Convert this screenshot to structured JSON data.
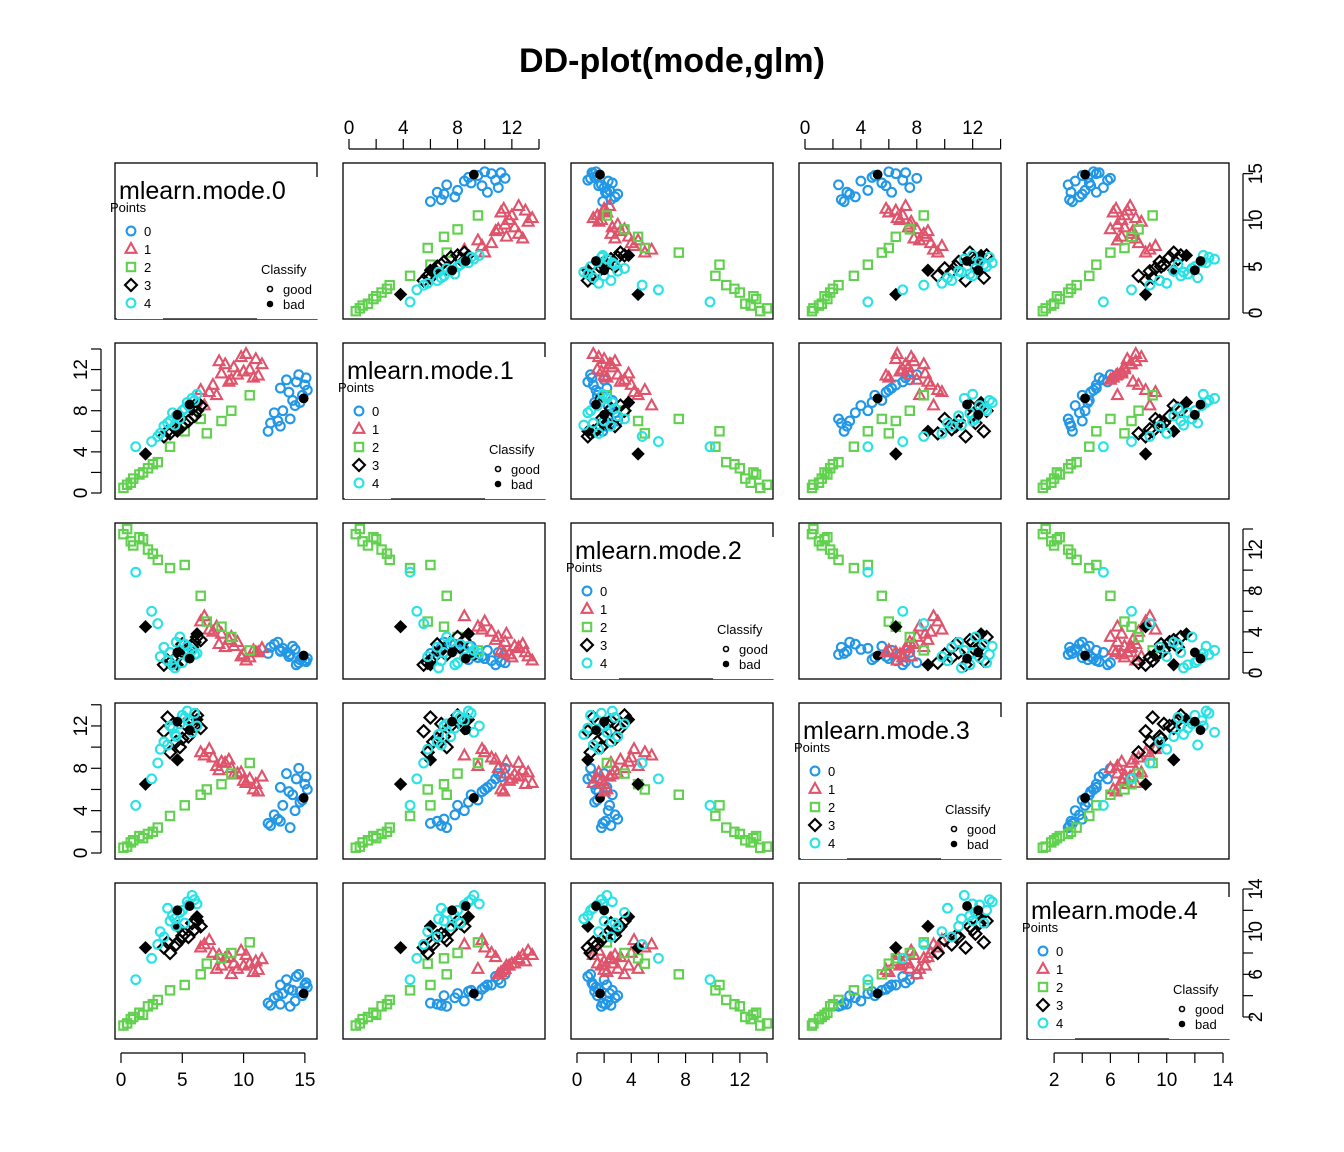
{
  "title": "DD-plot(mode,glm)",
  "colors": {
    "0": "#2297E6",
    "1": "#DF536B",
    "2": "#61D04F",
    "3": "#000000",
    "4": "#28E2E5"
  },
  "legend": {
    "points_title": "Points",
    "points_labels": [
      "0",
      "1",
      "2",
      "3",
      "4"
    ],
    "classify_title": "Classify",
    "classify_labels": [
      "good",
      "bad"
    ]
  },
  "variables": [
    "mlearn.mode.0",
    "mlearn.mode.1",
    "mlearn.mode.2",
    "mlearn.mode.3",
    "mlearn.mode.4"
  ],
  "chart_data": {
    "type": "scatter",
    "title": "DD-plot(mode,glm)",
    "layout": "pairs matrix 5x5",
    "variables": [
      "mlearn.mode.0",
      "mlearn.mode.1",
      "mlearn.mode.2",
      "mlearn.mode.3",
      "mlearn.mode.4"
    ],
    "ranges": [
      [
        0,
        15.5
      ],
      [
        0,
        14
      ],
      [
        0,
        14
      ],
      [
        0,
        13.6
      ],
      [
        0.5,
        14
      ]
    ],
    "ticks": [
      [
        "0",
        "5",
        "10",
        "15"
      ],
      [
        "0",
        "4",
        "8",
        "12"
      ],
      [
        "0",
        "4",
        "8",
        "12"
      ],
      [
        "0",
        "4",
        "8",
        "12"
      ],
      [
        "2",
        "6",
        "10",
        "14"
      ]
    ],
    "tick_values": [
      [
        0,
        5,
        10,
        15
      ],
      [
        0,
        4,
        8,
        12
      ],
      [
        0,
        4,
        8,
        12
      ],
      [
        0,
        4,
        8,
        12
      ],
      [
        2,
        6,
        10,
        14
      ]
    ],
    "minor_ticks": [
      [],
      [
        0,
        2,
        4,
        6,
        8,
        10,
        12,
        14
      ],
      [
        0,
        2,
        4,
        6,
        8,
        10,
        12,
        14
      ],
      [
        0,
        2,
        4,
        6,
        8,
        10,
        12,
        14
      ],
      [
        2,
        4,
        6,
        8,
        10,
        12,
        14
      ]
    ],
    "axis_layout": {
      "bottom": [
        0,
        2,
        4
      ],
      "top": [
        1,
        3
      ],
      "left": [
        1,
        3
      ],
      "right": [
        0,
        2,
        4
      ]
    },
    "groups": [
      {
        "name": "0",
        "shape": "circle",
        "color": "#2297E6"
      },
      {
        "name": "1",
        "shape": "triangle",
        "color": "#DF536B"
      },
      {
        "name": "2",
        "shape": "square",
        "color": "#61D04F"
      },
      {
        "name": "3",
        "shape": "diamond",
        "color": "#000000"
      },
      {
        "name": "4",
        "shape": "circle",
        "color": "#28E2E5"
      }
    ],
    "points": [
      [
        13.0,
        6.5,
        2.1,
        3.0,
        3.2,
        0,
        0
      ],
      [
        13.8,
        7.2,
        1.8,
        2.4,
        3.0,
        0,
        0
      ],
      [
        14.2,
        8.5,
        2.3,
        4.0,
        3.5,
        0,
        0
      ],
      [
        14.8,
        9.5,
        1.5,
        5.0,
        4.0,
        0,
        0
      ],
      [
        12.5,
        7.8,
        2.8,
        3.6,
        3.8,
        0,
        0
      ],
      [
        15.0,
        10.5,
        1.2,
        6.5,
        5.0,
        0,
        0
      ],
      [
        13.5,
        11.0,
        2.0,
        7.5,
        5.5,
        0,
        0
      ],
      [
        14.0,
        9.0,
        2.6,
        5.5,
        4.5,
        0,
        0
      ],
      [
        12.0,
        6.0,
        1.9,
        2.8,
        3.3,
        0,
        0
      ],
      [
        14.5,
        11.5,
        1.0,
        8.0,
        6.0,
        0,
        0
      ],
      [
        13.2,
        8.0,
        2.4,
        4.5,
        4.2,
        0,
        0
      ],
      [
        15.2,
        10.0,
        1.4,
        6.0,
        4.8,
        0,
        0
      ],
      [
        12.8,
        7.0,
        3.0,
        3.2,
        4.0,
        0,
        0
      ],
      [
        14.3,
        10.8,
        0.8,
        7.0,
        5.8,
        0,
        0
      ],
      [
        13.7,
        9.8,
        1.6,
        5.8,
        4.6,
        0,
        0
      ],
      [
        15.1,
        11.2,
        1.1,
        7.2,
        5.2,
        0,
        0
      ],
      [
        12.2,
        6.8,
        2.5,
        2.6,
        3.1,
        0,
        0
      ],
      [
        14.6,
        8.8,
        1.3,
        4.8,
        4.4,
        0,
        0
      ],
      [
        13.0,
        10.2,
        2.2,
        6.2,
        5.0,
        0,
        0
      ],
      [
        14.9,
        9.2,
        1.7,
        5.2,
        4.2,
        0,
        1
      ],
      [
        9.5,
        11.5,
        3.0,
        7.5,
        6.5,
        1,
        0
      ],
      [
        8.5,
        12.5,
        2.5,
        8.5,
        7.5,
        1,
        0
      ],
      [
        10.5,
        12.0,
        1.5,
        7.0,
        7.0,
        1,
        0
      ],
      [
        7.5,
        10.5,
        4.0,
        9.0,
        8.0,
        1,
        0
      ],
      [
        11.0,
        13.0,
        2.0,
        6.5,
        7.2,
        1,
        0
      ],
      [
        9.0,
        11.0,
        3.5,
        8.0,
        6.0,
        1,
        0
      ],
      [
        6.5,
        10.0,
        5.0,
        9.5,
        8.5,
        1,
        0
      ],
      [
        8.0,
        12.8,
        2.8,
        7.8,
        7.8,
        1,
        0
      ],
      [
        10.0,
        11.8,
        1.8,
        6.8,
        6.8,
        1,
        0
      ],
      [
        11.5,
        12.5,
        2.4,
        7.2,
        7.4,
        1,
        0
      ],
      [
        7.8,
        9.5,
        4.5,
        8.2,
        6.5,
        1,
        0
      ],
      [
        9.8,
        13.2,
        1.6,
        7.6,
        8.2,
        1,
        0
      ],
      [
        8.8,
        10.8,
        3.2,
        8.8,
        7.6,
        1,
        0
      ],
      [
        10.8,
        11.2,
        2.2,
        6.0,
        6.2,
        1,
        0
      ],
      [
        6.8,
        8.5,
        5.5,
        9.2,
        8.8,
        1,
        0
      ],
      [
        9.2,
        12.2,
        2.6,
        7.4,
        7.0,
        1,
        0
      ],
      [
        8.2,
        11.6,
        3.8,
        8.6,
        6.8,
        1,
        0
      ],
      [
        10.2,
        13.5,
        1.2,
        6.6,
        7.8,
        1,
        0
      ],
      [
        7.2,
        9.8,
        4.2,
        9.8,
        9.2,
        1,
        0
      ],
      [
        11.2,
        11.4,
        2.0,
        5.8,
        6.4,
        1,
        0
      ],
      [
        0.2,
        0.5,
        13.5,
        0.5,
        1.2,
        2,
        0
      ],
      [
        0.8,
        1.0,
        12.8,
        1.0,
        1.8,
        2,
        0
      ],
      [
        1.5,
        1.8,
        13.2,
        1.6,
        2.4,
        2,
        0
      ],
      [
        2.2,
        2.4,
        12.0,
        1.8,
        3.0,
        2,
        0
      ],
      [
        3.0,
        3.0,
        11.0,
        2.4,
        3.6,
        2,
        0
      ],
      [
        0.5,
        0.8,
        14.0,
        0.6,
        1.4,
        2,
        0
      ],
      [
        1.0,
        1.4,
        12.4,
        1.2,
        2.0,
        2,
        0
      ],
      [
        5.2,
        6.0,
        10.5,
        4.5,
        5.0,
        2,
        0
      ],
      [
        6.5,
        7.2,
        7.5,
        5.5,
        6.0,
        2,
        0
      ],
      [
        7.0,
        5.8,
        5.0,
        6.0,
        7.0,
        2,
        0
      ],
      [
        9.0,
        8.0,
        3.5,
        7.5,
        8.0,
        2,
        0
      ],
      [
        10.5,
        9.5,
        2.2,
        8.5,
        9.0,
        2,
        0
      ],
      [
        4.0,
        4.5,
        10.2,
        3.5,
        4.5,
        2,
        0
      ],
      [
        1.8,
        2.0,
        13.0,
        1.4,
        2.2,
        2,
        0
      ],
      [
        2.6,
        2.8,
        11.6,
        2.0,
        3.2,
        2,
        0
      ],
      [
        8.2,
        7.0,
        4.5,
        6.5,
        7.5,
        2,
        0
      ],
      [
        5.5,
        7.0,
        2.0,
        11.0,
        9.5,
        3,
        0
      ],
      [
        6.0,
        7.5,
        3.0,
        12.0,
        10.2,
        3,
        0
      ],
      [
        4.5,
        6.2,
        1.5,
        10.5,
        8.8,
        3,
        0
      ],
      [
        5.8,
        8.2,
        2.5,
        12.5,
        10.8,
        3,
        0
      ],
      [
        4.0,
        5.8,
        1.0,
        9.5,
        8.0,
        3,
        0
      ],
      [
        6.2,
        8.0,
        3.5,
        13.0,
        11.0,
        3,
        0
      ],
      [
        3.5,
        5.5,
        0.8,
        11.5,
        8.5,
        3,
        0
      ],
      [
        5.2,
        6.8,
        2.2,
        12.2,
        9.8,
        3,
        0
      ],
      [
        4.8,
        7.2,
        1.8,
        10.0,
        9.2,
        3,
        0
      ],
      [
        6.5,
        8.5,
        3.2,
        11.8,
        10.5,
        3,
        0
      ],
      [
        3.8,
        6.0,
        1.2,
        12.8,
        9.0,
        3,
        0
      ],
      [
        5.0,
        6.5,
        2.8,
        10.8,
        9.6,
        3,
        0
      ],
      [
        2.0,
        3.8,
        4.5,
        6.5,
        8.5,
        3,
        1
      ],
      [
        4.6,
        6.0,
        0.8,
        8.8,
        10.5,
        3,
        1
      ],
      [
        6.2,
        8.8,
        3.8,
        12.6,
        11.4,
        3,
        1
      ],
      [
        4.0,
        7.0,
        2.0,
        12.0,
        11.0,
        4,
        0
      ],
      [
        5.0,
        8.0,
        1.0,
        13.0,
        12.0,
        4,
        0
      ],
      [
        4.5,
        7.5,
        3.0,
        11.0,
        10.5,
        4,
        0
      ],
      [
        5.5,
        8.5,
        1.5,
        12.5,
        12.5,
        4,
        0
      ],
      [
        3.5,
        6.5,
        2.5,
        10.5,
        9.5,
        4,
        0
      ],
      [
        6.0,
        9.0,
        1.8,
        13.2,
        13.0,
        4,
        0
      ],
      [
        4.2,
        7.8,
        0.8,
        11.8,
        11.5,
        4,
        0
      ],
      [
        5.2,
        8.2,
        2.8,
        12.8,
        10.8,
        4,
        0
      ],
      [
        3.8,
        6.8,
        1.2,
        10.2,
        12.2,
        4,
        0
      ],
      [
        5.8,
        9.2,
        2.2,
        11.4,
        13.4,
        4,
        0
      ],
      [
        4.8,
        7.2,
        3.5,
        12.2,
        11.8,
        4,
        0
      ],
      [
        3.2,
        5.8,
        1.6,
        9.8,
        10.0,
        4,
        0
      ],
      [
        5.4,
        8.8,
        2.6,
        13.4,
        12.8,
        4,
        0
      ],
      [
        4.4,
        6.6,
        0.5,
        11.2,
        11.2,
        4,
        0
      ],
      [
        6.2,
        9.6,
        1.9,
        12.0,
        12.6,
        4,
        0
      ],
      [
        2.5,
        5.0,
        6.0,
        7.0,
        7.5,
        4,
        0
      ],
      [
        3.0,
        5.5,
        4.8,
        8.5,
        8.8,
        4,
        0
      ],
      [
        1.2,
        4.5,
        9.8,
        4.5,
        5.5,
        4,
        0
      ],
      [
        4.6,
        7.6,
        2.0,
        12.4,
        12.0,
        4,
        1
      ],
      [
        5.6,
        8.6,
        1.4,
        11.6,
        12.4,
        4,
        1
      ]
    ]
  }
}
